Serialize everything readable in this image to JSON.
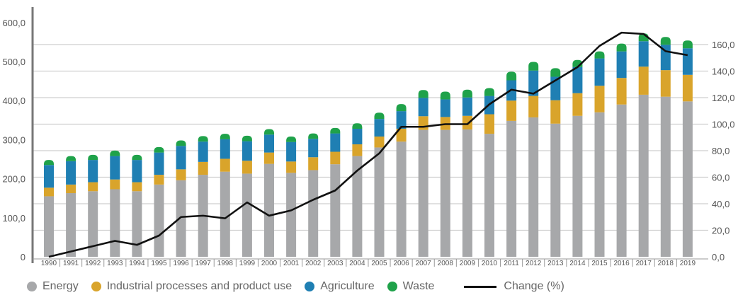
{
  "chart_data": {
    "type": "bar",
    "stacked": true,
    "categories": [
      "1990",
      "1991",
      "1992",
      "1993",
      "1994",
      "1995",
      "1996",
      "1997",
      "1998",
      "1999",
      "2000",
      "2001",
      "2002",
      "2003",
      "2004",
      "2005",
      "2006",
      "2007",
      "2008",
      "2009",
      "2010",
      "2011",
      "2012",
      "2013",
      "2014",
      "2015",
      "2016",
      "2017",
      "2018",
      "2019"
    ],
    "series": [
      {
        "name": "Energy",
        "color": "#a7a8aa",
        "values": [
          155,
          163,
          168,
          173,
          168,
          185,
          196,
          210,
          218,
          213,
          238,
          215,
          222,
          237,
          258,
          280,
          295,
          325,
          325,
          326,
          315,
          348,
          357,
          341,
          361,
          370,
          390,
          415,
          410,
          398
        ]
      },
      {
        "name": "Industrial processes and product use",
        "color": "#d9a42b",
        "values": [
          22,
          22,
          23,
          25,
          23,
          25,
          28,
          33,
          33,
          33,
          29,
          29,
          33,
          32,
          30,
          28,
          33,
          35,
          33,
          35,
          50,
          52,
          55,
          60,
          58,
          68,
          68,
          72,
          68,
          68
        ]
      },
      {
        "name": "Agriculture",
        "color": "#1f7fb3",
        "values": [
          58,
          60,
          57,
          60,
          57,
          57,
          60,
          52,
          50,
          50,
          46,
          50,
          47,
          47,
          40,
          45,
          45,
          47,
          45,
          47,
          47,
          52,
          65,
          60,
          67,
          70,
          68,
          65,
          65,
          68
        ]
      },
      {
        "name": "Waste",
        "color": "#1fa24a",
        "values": [
          13,
          13,
          13,
          14,
          13,
          14,
          14,
          14,
          14,
          14,
          14,
          14,
          14,
          14,
          14,
          16,
          18,
          20,
          20,
          20,
          20,
          22,
          22,
          22,
          18,
          18,
          20,
          20,
          20,
          20
        ]
      }
    ],
    "line": {
      "name": "Change (%)",
      "color": "#111111",
      "axis": "right",
      "values": [
        0,
        4,
        8,
        12,
        9,
        16,
        30,
        31,
        29,
        41,
        31,
        35,
        43,
        50,
        65,
        78,
        98,
        98,
        100,
        100,
        115,
        126,
        123,
        133,
        143,
        159,
        169,
        168,
        155,
        152
      ]
    },
    "y_left": {
      "min": 0,
      "max": 600,
      "ticks": [
        "0",
        "100,0",
        "200,0",
        "300,0",
        "400,0",
        "500,0",
        "600,0"
      ]
    },
    "y_right": {
      "min": 0,
      "max": 160,
      "ticks": [
        "0,0",
        "20,0",
        "40,0",
        "60,0",
        "80,0",
        "100,0",
        "120,0",
        "140,0",
        "160,0"
      ]
    },
    "grid": true,
    "legend": "bottom"
  }
}
